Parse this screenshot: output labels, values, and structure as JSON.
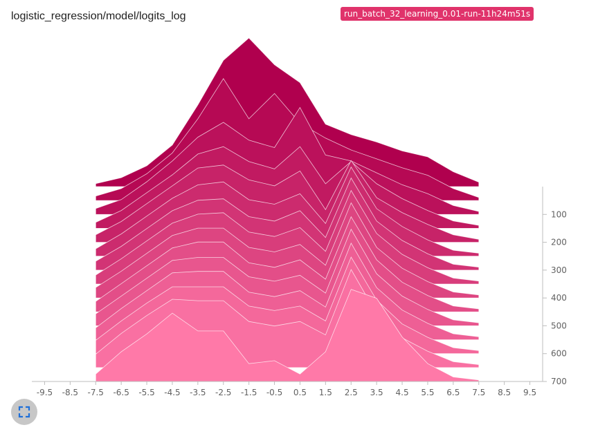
{
  "card": {
    "title": "logistic_regression/model/logits_log",
    "run_tag": "run_batch_32_learning_0.01-run-11h24m51s",
    "expand_icon": "fullscreen-icon"
  },
  "colors": {
    "newest": "#ff79a8",
    "oldest": "#b0004e",
    "tag_bg": "#e0336b",
    "outline": "#ffffff"
  },
  "chart_data": {
    "type": "area",
    "mode": "offset",
    "x_ticks": [
      "-9.5",
      "-8.5",
      "-7.5",
      "-6.5",
      "-5.5",
      "-4.5",
      "-3.5",
      "-2.5",
      "-1.5",
      "-0.5",
      "0.5",
      "1.5",
      "2.5",
      "3.5",
      "4.5",
      "5.5",
      "6.5",
      "7.5",
      "8.5",
      "9.5"
    ],
    "xlim": [
      -10,
      10
    ],
    "y_ticks": [
      "100",
      "200",
      "300",
      "400",
      "500",
      "600",
      "700"
    ],
    "steps": [
      0,
      700
    ],
    "series": [
      {
        "step": 0,
        "x": [
          -7.5,
          -6.5,
          -5.5,
          -4.5,
          -3.5,
          -2.5,
          -1.5,
          -0.5,
          0.5,
          1.5,
          2.5,
          3.5,
          4.5,
          5.5,
          6.5,
          7.5
        ],
        "values": [
          0.02,
          0.06,
          0.14,
          0.28,
          0.55,
          0.85,
          1.0,
          0.82,
          0.7,
          0.42,
          0.35,
          0.3,
          0.24,
          0.2,
          0.1,
          0.03
        ]
      },
      {
        "step": 50,
        "x": [
          -7.5,
          -6.5,
          -5.5,
          -4.5,
          -3.5,
          -2.5,
          -1.5,
          -0.5,
          0.5,
          1.5,
          2.5,
          3.5,
          4.5,
          5.5,
          6.5,
          7.5
        ],
        "values": [
          0.03,
          0.08,
          0.18,
          0.32,
          0.55,
          0.82,
          0.55,
          0.72,
          0.52,
          0.42,
          0.34,
          0.28,
          0.22,
          0.17,
          0.08,
          0.02
        ]
      },
      {
        "step": 100,
        "x": [
          -7.5,
          -6.5,
          -5.5,
          -4.5,
          -3.5,
          -2.5,
          -1.5,
          -0.5,
          0.5,
          1.5,
          2.5,
          3.5,
          4.5,
          5.5,
          6.5,
          7.5
        ],
        "values": [
          0.04,
          0.1,
          0.22,
          0.36,
          0.52,
          0.62,
          0.5,
          0.45,
          0.72,
          0.4,
          0.36,
          0.28,
          0.2,
          0.14,
          0.06,
          0.02
        ]
      },
      {
        "step": 150,
        "x": [
          -7.5,
          -6.5,
          -5.5,
          -4.5,
          -3.5,
          -2.5,
          -1.5,
          -0.5,
          0.5,
          1.5,
          2.5,
          3.5,
          4.5,
          5.5,
          6.5,
          7.5
        ],
        "values": [
          0.04,
          0.12,
          0.24,
          0.36,
          0.5,
          0.55,
          0.45,
          0.4,
          0.55,
          0.3,
          0.45,
          0.3,
          0.2,
          0.12,
          0.05,
          0.02
        ]
      },
      {
        "step": 200,
        "x": [
          -7.5,
          -6.5,
          -5.5,
          -4.5,
          -3.5,
          -2.5,
          -1.5,
          -0.5,
          0.5,
          1.5,
          2.5,
          3.5,
          4.5,
          5.5,
          6.5,
          7.5
        ],
        "values": [
          0.05,
          0.14,
          0.26,
          0.38,
          0.5,
          0.52,
          0.42,
          0.38,
          0.48,
          0.22,
          0.55,
          0.3,
          0.2,
          0.12,
          0.05,
          0.02
        ]
      },
      {
        "step": 250,
        "x": [
          -7.5,
          -6.5,
          -5.5,
          -4.5,
          -3.5,
          -2.5,
          -1.5,
          -0.5,
          0.5,
          1.5,
          2.5,
          3.5,
          4.5,
          5.5,
          6.5,
          7.5
        ],
        "values": [
          0.05,
          0.15,
          0.27,
          0.39,
          0.48,
          0.5,
          0.38,
          0.35,
          0.42,
          0.22,
          0.6,
          0.32,
          0.2,
          0.11,
          0.04,
          0.02
        ]
      },
      {
        "step": 300,
        "x": [
          -7.5,
          -6.5,
          -5.5,
          -4.5,
          -3.5,
          -2.5,
          -1.5,
          -0.5,
          0.5,
          1.5,
          2.5,
          3.5,
          4.5,
          5.5,
          6.5,
          7.5
        ],
        "values": [
          0.06,
          0.16,
          0.28,
          0.4,
          0.47,
          0.48,
          0.36,
          0.33,
          0.4,
          0.22,
          0.62,
          0.33,
          0.2,
          0.11,
          0.04,
          0.02
        ]
      },
      {
        "step": 350,
        "x": [
          -7.5,
          -6.5,
          -5.5,
          -4.5,
          -3.5,
          -2.5,
          -1.5,
          -0.5,
          0.5,
          1.5,
          2.5,
          3.5,
          4.5,
          5.5,
          6.5,
          7.5
        ],
        "values": [
          0.06,
          0.17,
          0.29,
          0.41,
          0.47,
          0.48,
          0.35,
          0.32,
          0.38,
          0.22,
          0.63,
          0.34,
          0.2,
          0.11,
          0.04,
          0.02
        ]
      },
      {
        "step": 400,
        "x": [
          -7.5,
          -6.5,
          -5.5,
          -4.5,
          -3.5,
          -2.5,
          -1.5,
          -0.5,
          0.5,
          1.5,
          2.5,
          3.5,
          4.5,
          5.5,
          6.5,
          7.5
        ],
        "values": [
          0.07,
          0.18,
          0.3,
          0.42,
          0.47,
          0.47,
          0.34,
          0.31,
          0.36,
          0.22,
          0.64,
          0.34,
          0.2,
          0.11,
          0.04,
          0.02
        ]
      },
      {
        "step": 450,
        "x": [
          -7.5,
          -6.5,
          -5.5,
          -4.5,
          -3.5,
          -2.5,
          -1.5,
          -0.5,
          0.5,
          1.5,
          2.5,
          3.5,
          4.5,
          5.5,
          6.5,
          7.5
        ],
        "values": [
          0.07,
          0.19,
          0.31,
          0.43,
          0.47,
          0.47,
          0.33,
          0.3,
          0.35,
          0.22,
          0.64,
          0.35,
          0.2,
          0.11,
          0.04,
          0.02
        ]
      },
      {
        "step": 500,
        "x": [
          -7.5,
          -6.5,
          -5.5,
          -4.5,
          -3.5,
          -2.5,
          -1.5,
          -0.5,
          0.5,
          1.5,
          2.5,
          3.5,
          4.5,
          5.5,
          6.5,
          7.5
        ],
        "values": [
          0.08,
          0.2,
          0.32,
          0.44,
          0.46,
          0.46,
          0.33,
          0.3,
          0.34,
          0.22,
          0.65,
          0.35,
          0.2,
          0.11,
          0.04,
          0.02
        ]
      },
      {
        "step": 550,
        "x": [
          -7.5,
          -6.5,
          -5.5,
          -4.5,
          -3.5,
          -2.5,
          -1.5,
          -0.5,
          0.5,
          1.5,
          2.5,
          3.5,
          4.5,
          5.5,
          6.5,
          7.5
        ],
        "values": [
          0.08,
          0.21,
          0.33,
          0.45,
          0.46,
          0.46,
          0.32,
          0.29,
          0.33,
          0.22,
          0.65,
          0.35,
          0.2,
          0.11,
          0.04,
          0.02
        ]
      },
      {
        "step": 600,
        "x": [
          -7.5,
          -6.5,
          -5.5,
          -4.5,
          -3.5,
          -2.5,
          -1.5,
          -0.5,
          0.5,
          1.5,
          2.5,
          3.5,
          4.5,
          5.5,
          6.5,
          7.5
        ],
        "values": [
          0.09,
          0.22,
          0.34,
          0.45,
          0.45,
          0.45,
          0.32,
          0.29,
          0.32,
          0.22,
          0.65,
          0.36,
          0.2,
          0.11,
          0.04,
          0.02
        ]
      },
      {
        "step": 650,
        "x": [
          -7.5,
          -6.5,
          -5.5,
          -4.5,
          -3.5,
          -2.5,
          -1.5,
          -0.5,
          0.5,
          1.5,
          2.5,
          3.5,
          4.5,
          5.5,
          6.5,
          7.5
        ],
        "values": [
          0.09,
          0.23,
          0.35,
          0.46,
          0.45,
          0.45,
          0.31,
          0.28,
          0.31,
          0.22,
          0.66,
          0.36,
          0.2,
          0.11,
          0.04,
          0.02
        ]
      },
      {
        "step": 700,
        "x": [
          -7.5,
          -6.5,
          -5.5,
          -4.5,
          -3.5,
          -2.5,
          -1.5,
          -0.5,
          0.5,
          1.5,
          2.5,
          3.5,
          4.5,
          5.5,
          6.5,
          7.5
        ],
        "values": [
          0.05,
          0.2,
          0.32,
          0.46,
          0.34,
          0.34,
          0.12,
          0.14,
          0.05,
          0.2,
          0.62,
          0.56,
          0.3,
          0.12,
          0.03,
          0.01
        ]
      }
    ]
  }
}
